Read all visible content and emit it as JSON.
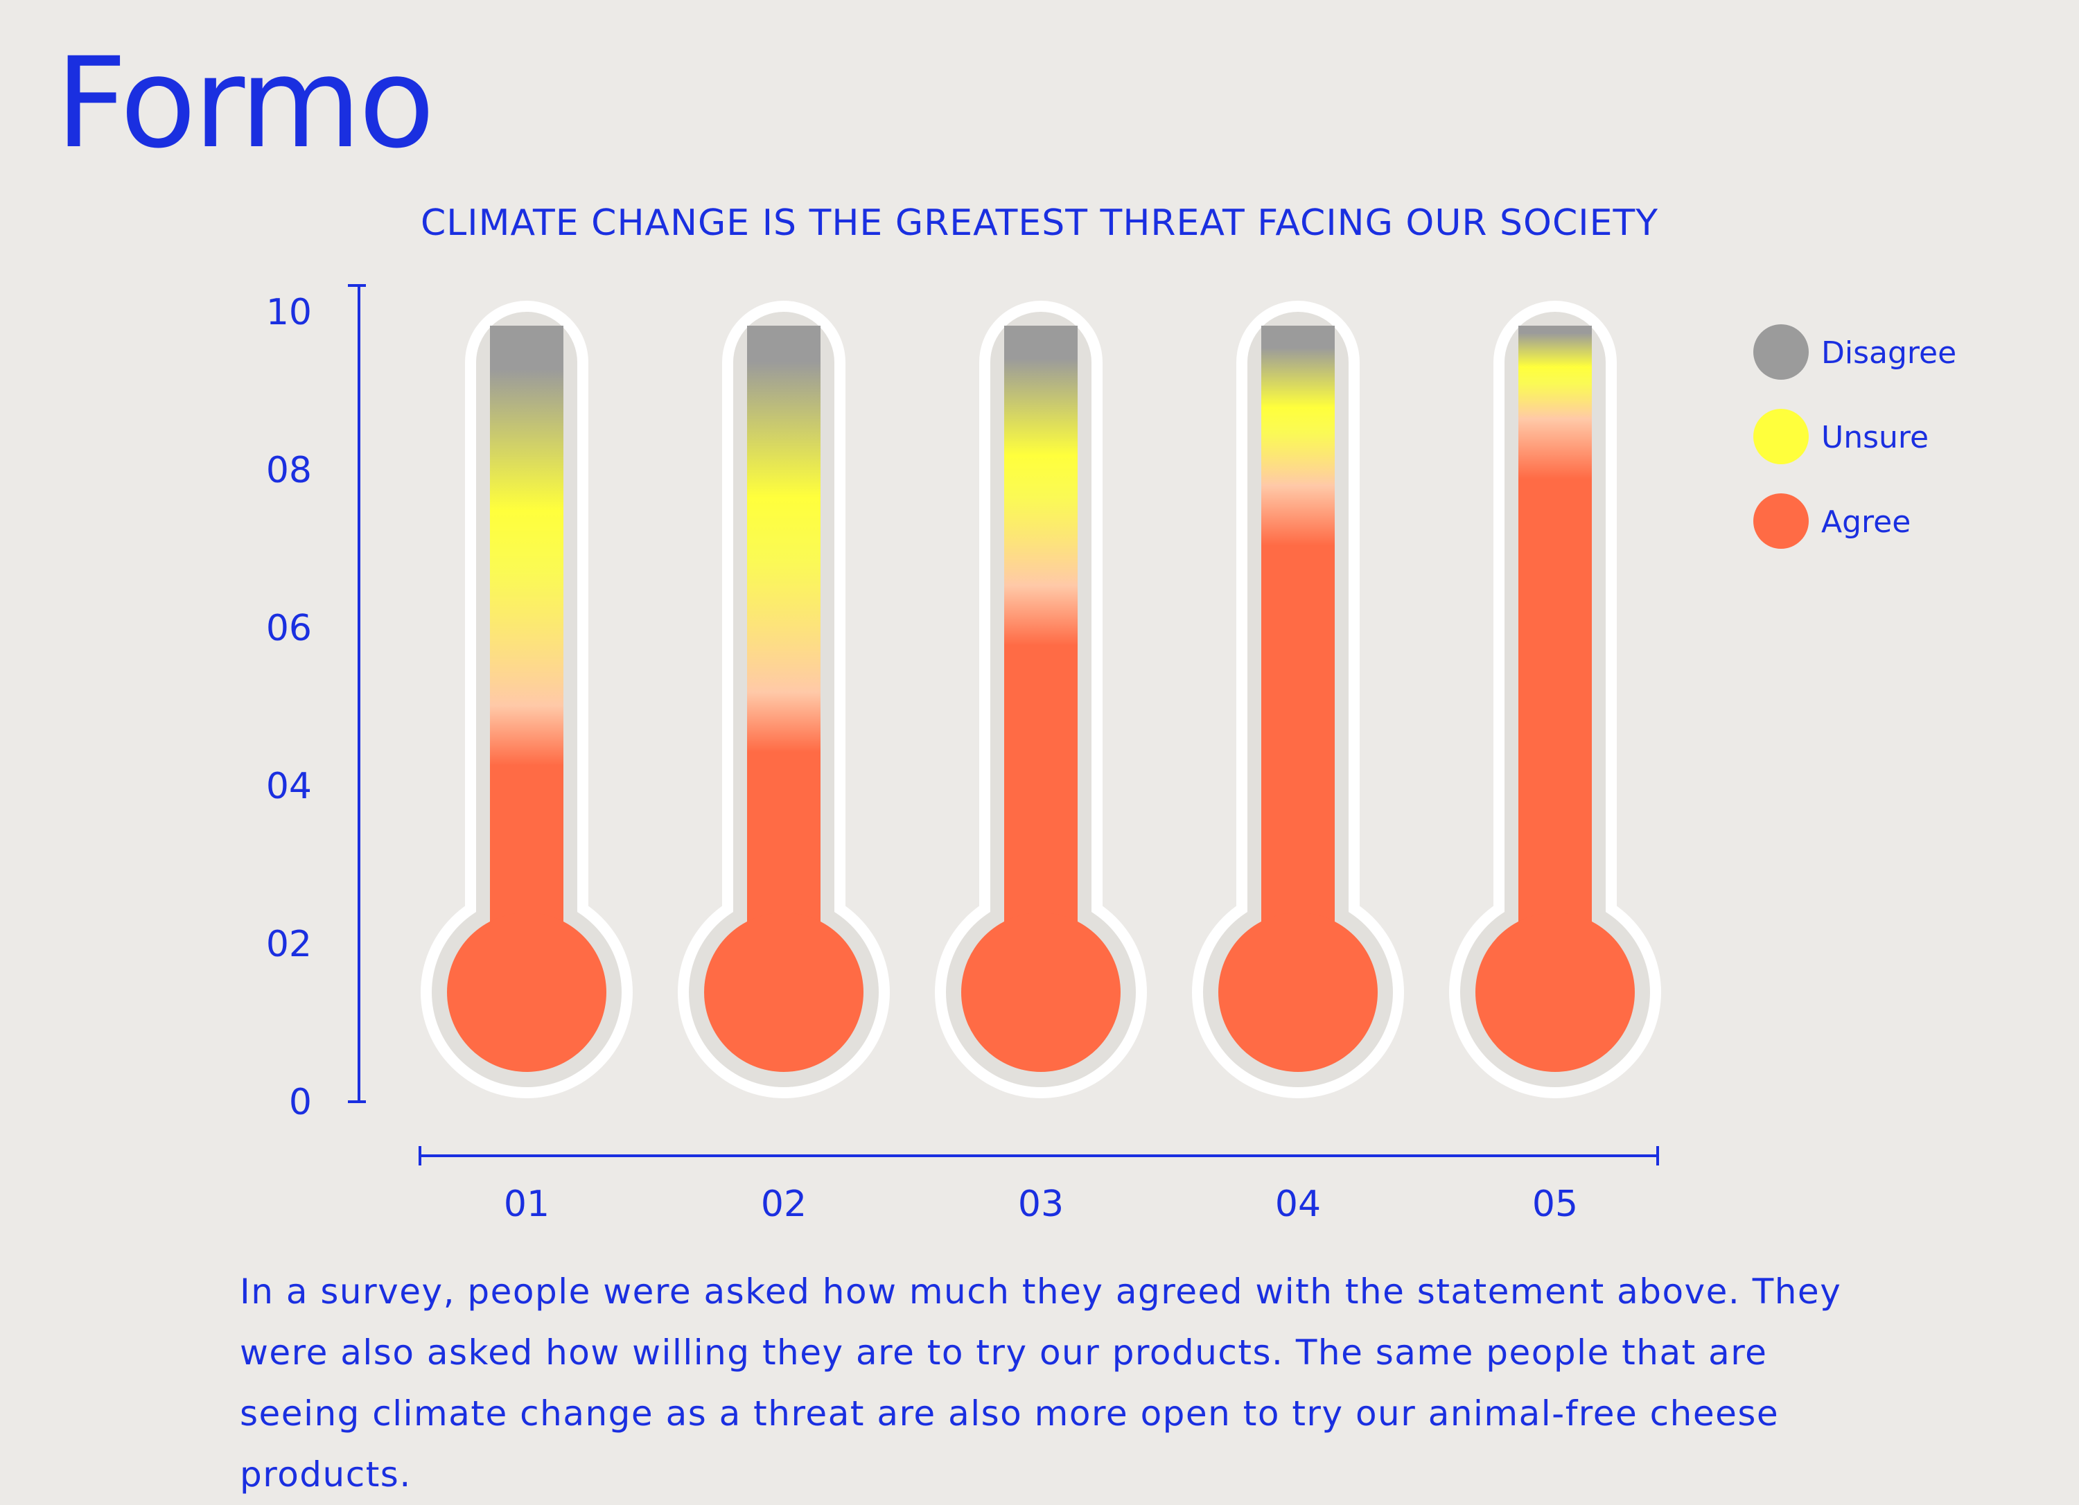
{
  "brand": {
    "logo_text": "Formo"
  },
  "colors": {
    "background": "#ECEAE7",
    "text": "#1A2FE0",
    "disagree": "#9B9B9B",
    "unsure": "#FFFF3C",
    "agree": "#FF6B45",
    "tube_outline": "#FFFFFF",
    "tube_inner": "#E2E0DC"
  },
  "description": "In a survey, people were asked how much they agreed with the statement above. They were also asked how willing they are to try our products. The same people that are seeing climate change as a threat are also more open to try our animal-free cheese products.",
  "chart_data": {
    "type": "bar",
    "title": "CLIMATE CHANGE IS THE GREATEST THREAT FACING OUR SOCIETY",
    "xlabel": "",
    "ylabel": "",
    "ylim": [
      0,
      10
    ],
    "y_ticks": [
      "0",
      "02",
      "04",
      "06",
      "08",
      "10"
    ],
    "categories": [
      "01",
      "02",
      "03",
      "04",
      "05"
    ],
    "legend_position": "top-right",
    "series": [
      {
        "name": "Disagree",
        "color": "#9B9B9B",
        "values": [
          1.2,
          1.0,
          0.9,
          0.6,
          0.2
        ]
      },
      {
        "name": "Unsure",
        "color": "#FFFF3C",
        "values": [
          4.5,
          4.5,
          3.0,
          1.8,
          1.2
        ]
      },
      {
        "name": "Agree",
        "color": "#FF6B45",
        "values": [
          4.3,
          4.5,
          6.1,
          7.6,
          8.6
        ]
      }
    ]
  }
}
